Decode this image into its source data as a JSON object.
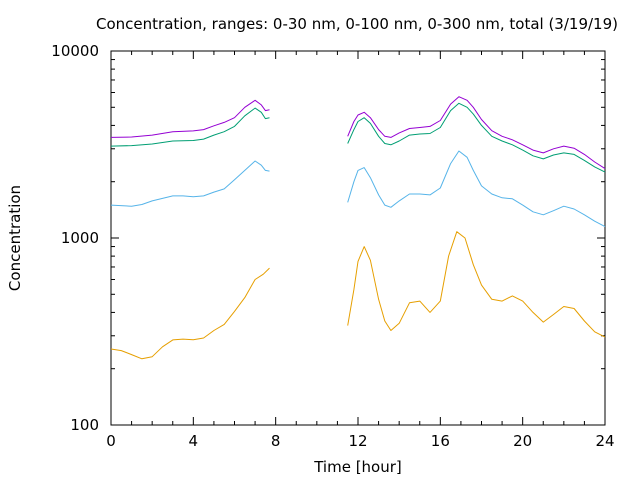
{
  "chart_data": {
    "type": "line",
    "title": "Concentration, ranges: 0-30 nm, 0-100 nm, 0-300 nm, total (3/19/19)",
    "xlabel": "Time [hour]",
    "ylabel": "Concentration",
    "xlim": [
      0,
      24
    ],
    "ylim": [
      100,
      10000
    ],
    "yscale": "log",
    "grid": false,
    "legend": "none",
    "xticks": [
      0,
      4,
      8,
      12,
      16,
      20,
      24
    ],
    "yticks": [
      100,
      1000,
      10000
    ],
    "yticks_labels": [
      "100",
      "1000",
      "10000"
    ],
    "series": [
      {
        "color": "#e69f00",
        "segments": [
          [
            [
              0,
              255
            ],
            [
              0.5,
              250
            ],
            [
              1,
              238
            ],
            [
              1.5,
              226
            ],
            [
              2,
              232
            ],
            [
              2.5,
              262
            ],
            [
              3,
              285
            ],
            [
              3.5,
              288
            ],
            [
              4,
              286
            ],
            [
              4.5,
              292
            ],
            [
              5,
              320
            ],
            [
              5.5,
              345
            ],
            [
              6,
              405
            ],
            [
              6.5,
              480
            ],
            [
              7,
              600
            ],
            [
              7.4,
              640
            ],
            [
              7.7,
              690
            ]
          ],
          [
            [
              11.5,
              340
            ],
            [
              11.8,
              530
            ],
            [
              12,
              750
            ],
            [
              12.3,
              900
            ],
            [
              12.6,
              760
            ],
            [
              13,
              470
            ],
            [
              13.3,
              360
            ],
            [
              13.6,
              320
            ],
            [
              14,
              350
            ],
            [
              14.5,
              450
            ],
            [
              15,
              460
            ],
            [
              15.5,
              400
            ],
            [
              16,
              460
            ],
            [
              16.4,
              800
            ],
            [
              16.8,
              1080
            ],
            [
              17.2,
              1000
            ],
            [
              17.6,
              720
            ],
            [
              18,
              560
            ],
            [
              18.5,
              470
            ],
            [
              19,
              460
            ],
            [
              19.5,
              490
            ],
            [
              20,
              460
            ],
            [
              20.5,
              400
            ],
            [
              21,
              355
            ],
            [
              21.5,
              390
            ],
            [
              22,
              430
            ],
            [
              22.5,
              420
            ],
            [
              23,
              360
            ],
            [
              23.5,
              315
            ],
            [
              24,
              295
            ]
          ]
        ]
      },
      {
        "color": "#56b4e9",
        "segments": [
          [
            [
              0,
              1500
            ],
            [
              1,
              1480
            ],
            [
              1.5,
              1510
            ],
            [
              2,
              1580
            ],
            [
              3,
              1680
            ],
            [
              3.5,
              1680
            ],
            [
              4,
              1660
            ],
            [
              4.5,
              1680
            ],
            [
              5,
              1760
            ],
            [
              5.5,
              1830
            ],
            [
              6,
              2050
            ],
            [
              6.5,
              2300
            ],
            [
              7,
              2580
            ],
            [
              7.3,
              2450
            ],
            [
              7.5,
              2300
            ],
            [
              7.7,
              2280
            ]
          ],
          [
            [
              11.5,
              1550
            ],
            [
              11.8,
              2000
            ],
            [
              12,
              2300
            ],
            [
              12.3,
              2380
            ],
            [
              12.6,
              2100
            ],
            [
              13,
              1700
            ],
            [
              13.3,
              1500
            ],
            [
              13.6,
              1460
            ],
            [
              14,
              1580
            ],
            [
              14.5,
              1720
            ],
            [
              15,
              1720
            ],
            [
              15.5,
              1700
            ],
            [
              16,
              1850
            ],
            [
              16.5,
              2500
            ],
            [
              16.9,
              2920
            ],
            [
              17.3,
              2700
            ],
            [
              17.6,
              2300
            ],
            [
              18,
              1900
            ],
            [
              18.5,
              1720
            ],
            [
              19,
              1640
            ],
            [
              19.5,
              1620
            ],
            [
              20,
              1500
            ],
            [
              20.5,
              1380
            ],
            [
              21,
              1330
            ],
            [
              21.5,
              1400
            ],
            [
              22,
              1480
            ],
            [
              22.5,
              1430
            ],
            [
              23,
              1330
            ],
            [
              23.5,
              1230
            ],
            [
              24,
              1150
            ]
          ]
        ]
      },
      {
        "color": "#009e73",
        "segments": [
          [
            [
              0,
              3100
            ],
            [
              1,
              3120
            ],
            [
              2,
              3180
            ],
            [
              3,
              3300
            ],
            [
              4,
              3320
            ],
            [
              4.5,
              3380
            ],
            [
              5,
              3550
            ],
            [
              5.5,
              3700
            ],
            [
              6,
              3950
            ],
            [
              6.5,
              4500
            ],
            [
              7,
              4950
            ],
            [
              7.3,
              4700
            ],
            [
              7.5,
              4350
            ],
            [
              7.7,
              4400
            ]
          ],
          [
            [
              11.5,
              3200
            ],
            [
              11.8,
              3800
            ],
            [
              12,
              4200
            ],
            [
              12.3,
              4400
            ],
            [
              12.6,
              4100
            ],
            [
              13,
              3500
            ],
            [
              13.3,
              3200
            ],
            [
              13.6,
              3150
            ],
            [
              14,
              3300
            ],
            [
              14.5,
              3550
            ],
            [
              15,
              3600
            ],
            [
              15.5,
              3620
            ],
            [
              16,
              3900
            ],
            [
              16.5,
              4800
            ],
            [
              16.9,
              5250
            ],
            [
              17.3,
              5000
            ],
            [
              17.6,
              4600
            ],
            [
              18,
              4000
            ],
            [
              18.5,
              3500
            ],
            [
              19,
              3300
            ],
            [
              19.5,
              3150
            ],
            [
              20,
              2950
            ],
            [
              20.5,
              2750
            ],
            [
              21,
              2650
            ],
            [
              21.5,
              2780
            ],
            [
              22,
              2850
            ],
            [
              22.5,
              2800
            ],
            [
              23,
              2600
            ],
            [
              23.5,
              2400
            ],
            [
              24,
              2250
            ]
          ]
        ]
      },
      {
        "color": "#9400d3",
        "segments": [
          [
            [
              0,
              3450
            ],
            [
              1,
              3470
            ],
            [
              2,
              3550
            ],
            [
              3,
              3700
            ],
            [
              4,
              3740
            ],
            [
              4.5,
              3800
            ],
            [
              5,
              3980
            ],
            [
              5.5,
              4150
            ],
            [
              6,
              4400
            ],
            [
              6.5,
              5000
            ],
            [
              7,
              5450
            ],
            [
              7.3,
              5150
            ],
            [
              7.5,
              4800
            ],
            [
              7.7,
              4850
            ]
          ],
          [
            [
              11.5,
              3500
            ],
            [
              11.8,
              4200
            ],
            [
              12,
              4550
            ],
            [
              12.3,
              4700
            ],
            [
              12.6,
              4400
            ],
            [
              13,
              3800
            ],
            [
              13.3,
              3500
            ],
            [
              13.6,
              3450
            ],
            [
              14,
              3650
            ],
            [
              14.5,
              3850
            ],
            [
              15,
              3900
            ],
            [
              15.5,
              3950
            ],
            [
              16,
              4250
            ],
            [
              16.5,
              5200
            ],
            [
              16.9,
              5700
            ],
            [
              17.3,
              5450
            ],
            [
              17.6,
              5000
            ],
            [
              18,
              4300
            ],
            [
              18.5,
              3750
            ],
            [
              19,
              3500
            ],
            [
              19.5,
              3350
            ],
            [
              20,
              3150
            ],
            [
              20.5,
              2950
            ],
            [
              21,
              2850
            ],
            [
              21.5,
              3000
            ],
            [
              22,
              3100
            ],
            [
              22.5,
              3020
            ],
            [
              23,
              2800
            ],
            [
              23.5,
              2550
            ],
            [
              24,
              2350
            ]
          ]
        ]
      }
    ]
  }
}
